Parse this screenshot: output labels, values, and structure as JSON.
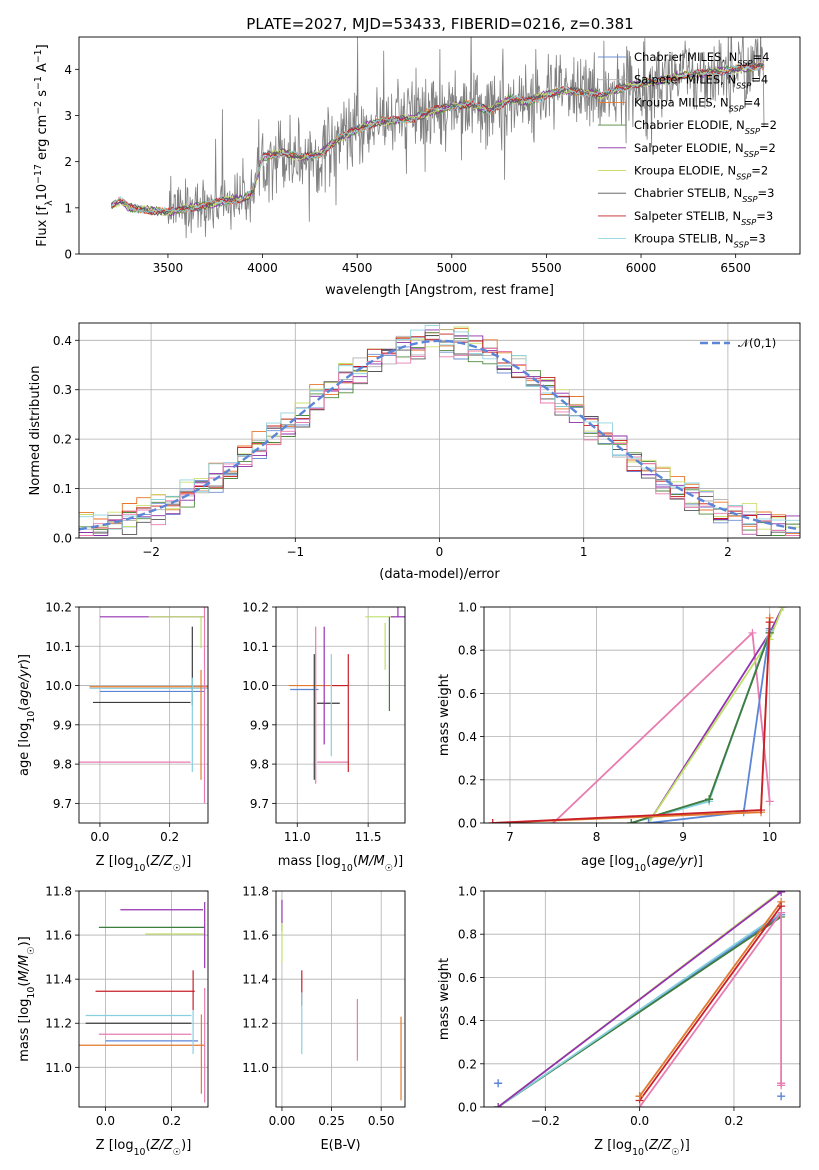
{
  "figure_title": "PLATE=2027, MJD=53433, FIBERID=0216, z=0.381",
  "series_colors": [
    "#6f8fd4",
    "#b0b0b0",
    "#e8762c",
    "#4f8a3c",
    "#8b2fa8",
    "#c9e070",
    "#555555",
    "#c41f1f",
    "#8fd3df"
  ],
  "model_colors": [
    "#5b86d8",
    "#7a7a7a",
    "#e27a2e",
    "#3d7d3d",
    "#9432b2",
    "#bfe06a",
    "#3a3a3a",
    "#c8202a",
    "#88d0e0",
    "#e87cb0"
  ],
  "normal_color": "#5b86d8",
  "chart_data": [
    {
      "id": "spectrum",
      "type": "line",
      "title": "PLATE=2027, MJD=53433, FIBERID=0216, z=0.381",
      "xlabel": "wavelength [Angstrom, rest frame]",
      "ylabel": "Flux [f_λ 10^-17 erg cm^-2 s^-1 A^-1]",
      "xlim": [
        3030,
        6840
      ],
      "ylim": [
        0,
        4.7
      ],
      "xticks": [
        3500,
        4000,
        4500,
        5000,
        5500,
        6000,
        6500
      ],
      "yticks": [
        0,
        1,
        2,
        3,
        4
      ],
      "grid": false,
      "legend_position": "top-right",
      "legend": [
        {
          "label": "Chabrier MILES, N",
          "sub": "SSP",
          "tail": "=4"
        },
        {
          "label": "Salpeter MILES, N",
          "sub": "SSP",
          "tail": "=4"
        },
        {
          "label": "Kroupa MILES, N",
          "sub": "SSP",
          "tail": "=4"
        },
        {
          "label": "Chabrier ELODIE, N",
          "sub": "SSP",
          "tail": "=2"
        },
        {
          "label": "Salpeter ELODIE, N",
          "sub": "SSP",
          "tail": "=2"
        },
        {
          "label": "Kroupa ELODIE, N",
          "sub": "SSP",
          "tail": "=2"
        },
        {
          "label": "Chabrier STELIB, N",
          "sub": "SSP",
          "tail": "=3"
        },
        {
          "label": "Salpeter STELIB, N",
          "sub": "SSP",
          "tail": "=3"
        },
        {
          "label": "Kroupa STELIB, N",
          "sub": "SSP",
          "tail": "=3"
        }
      ],
      "continuum": {
        "x": [
          3200,
          3250,
          3300,
          3400,
          3500,
          3600,
          3700,
          3800,
          3900,
          3950,
          4000,
          4100,
          4200,
          4300,
          4400,
          4500,
          4600,
          4700,
          4800,
          4900,
          5000,
          5100,
          5200,
          5300,
          5400,
          5500,
          5600,
          5700,
          5800,
          5900,
          6000,
          6100,
          6200,
          6300,
          6400,
          6500,
          6600,
          6650
        ],
        "y": [
          1.05,
          1.15,
          1.0,
          0.95,
          0.9,
          1.0,
          1.05,
          1.15,
          1.2,
          1.35,
          2.1,
          2.2,
          2.1,
          2.15,
          2.5,
          2.7,
          2.85,
          2.9,
          2.95,
          3.1,
          3.2,
          3.25,
          3.1,
          3.35,
          3.3,
          3.45,
          3.55,
          3.5,
          3.45,
          3.6,
          3.7,
          3.75,
          3.85,
          3.9,
          3.95,
          4.0,
          4.05,
          4.1
        ]
      },
      "spectrum_noise": 0.7
    },
    {
      "id": "residuals",
      "type": "histogram",
      "xlabel": "(data-model)/error",
      "ylabel": "Normed distribution",
      "xlim": [
        -2.5,
        2.5
      ],
      "ylim": [
        0,
        0.435
      ],
      "xticks": [
        -2,
        -1,
        0,
        1,
        2
      ],
      "yticks": [
        0.0,
        0.1,
        0.2,
        0.3,
        0.4
      ],
      "grid": true,
      "legend_position": "top-right",
      "legend": [
        {
          "label": "𝒩(0,1)"
        }
      ],
      "bin_width": 0.1,
      "jitter": 0.025
    },
    {
      "id": "age-vs-Z",
      "type": "errorbar",
      "xlabel": "Z [log10(Z/Z☉)]",
      "ylabel": "age  [log10(age/yr)]",
      "xlim": [
        -0.06,
        0.31
      ],
      "ylim": [
        9.65,
        10.2
      ],
      "xticks": [
        0.0,
        0.2
      ],
      "yticks": [
        9.7,
        9.8,
        9.9,
        10.0,
        10.1,
        10.2
      ],
      "grid": true,
      "points": [
        {
          "x": 0.15,
          "y": 10.175,
          "xerr": [
            0.15,
            0.15
          ],
          "yerr": [
            0,
            0
          ],
          "c": 4
        },
        {
          "x": 0.22,
          "y": 10.175,
          "xerr": [
            0.08,
            0.08
          ],
          "yerr": [
            0,
            0.0
          ],
          "c": 5
        },
        {
          "x": 0.29,
          "y": 10.175,
          "xerr": [
            0.0,
            0.0
          ],
          "yerr": [
            0.08,
            0.0
          ],
          "c": 5
        },
        {
          "x": 0.14,
          "y": 9.997,
          "xerr": [
            0.17,
            0.17
          ],
          "yerr": [
            0,
            0
          ],
          "c": 2
        },
        {
          "x": 0.14,
          "y": 9.993,
          "xerr": [
            0.17,
            0.17
          ],
          "yerr": [
            0,
            0
          ],
          "c": 8
        },
        {
          "x": 0.15,
          "y": 9.985,
          "xerr": [
            0.15,
            0.15
          ],
          "yerr": [
            0,
            0
          ],
          "c": 0
        },
        {
          "x": 0.12,
          "y": 9.957,
          "xerr": [
            0.14,
            0.14
          ],
          "yerr": [
            0,
            0
          ],
          "c": 6
        },
        {
          "x": 0.1,
          "y": 9.805,
          "xerr": [
            0.16,
            0.16
          ],
          "yerr": [
            0,
            0
          ],
          "c": 9
        },
        {
          "x": 0.265,
          "y": 10.05,
          "xerr": [
            0,
            0
          ],
          "yerr": [
            0.1,
            0.1
          ],
          "c": 6
        },
        {
          "x": 0.265,
          "y": 9.9,
          "xerr": [
            0,
            0
          ],
          "yerr": [
            0.12,
            0.12
          ],
          "c": 8
        },
        {
          "x": 0.29,
          "y": 9.9,
          "xerr": [
            0,
            0
          ],
          "yerr": [
            0.14,
            0.14
          ],
          "c": 2
        },
        {
          "x": 0.3,
          "y": 9.95,
          "xerr": [
            0,
            0
          ],
          "yerr": [
            0.25,
            0.25
          ],
          "c": 9
        }
      ]
    },
    {
      "id": "age-vs-mass",
      "type": "errorbar",
      "xlabel": "mass [log10(M/M☉)]",
      "ylabel": "",
      "xlim": [
        10.85,
        11.76
      ],
      "ylim": [
        9.65,
        10.2
      ],
      "xticks": [
        11.0,
        11.5
      ],
      "yticks": [
        9.7,
        9.8,
        9.9,
        10.0,
        10.1,
        10.2
      ],
      "grid": true,
      "points": [
        {
          "x": 11.58,
          "y": 10.175,
          "xerr": [
            0.1,
            0.1
          ],
          "yerr": [
            0.0,
            0.0
          ],
          "c": 5
        },
        {
          "x": 11.71,
          "y": 10.175,
          "xerr": [
            0.05,
            0.05
          ],
          "yerr": [
            0.0,
            0.09
          ],
          "c": 4
        },
        {
          "x": 11.65,
          "y": 10.175,
          "xerr": [
            0.0,
            0.0
          ],
          "yerr": [
            0.24,
            0.0
          ],
          "c": 3
        },
        {
          "x": 11.62,
          "y": 10.1,
          "xerr": [
            0.0,
            0.0
          ],
          "yerr": [
            0.06,
            0.06
          ],
          "c": 5
        },
        {
          "x": 11.14,
          "y": 10.0,
          "xerr": [
            0.2,
            0.2
          ],
          "yerr": [
            0,
            0
          ],
          "c": 2
        },
        {
          "x": 11.05,
          "y": 9.99,
          "xerr": [
            0.1,
            0.1
          ],
          "yerr": [
            0,
            0
          ],
          "c": 0
        },
        {
          "x": 11.22,
          "y": 9.955,
          "xerr": [
            0.08,
            0.08
          ],
          "yerr": [
            0,
            0
          ],
          "c": 6
        },
        {
          "x": 11.25,
          "y": 9.805,
          "xerr": [
            0.11,
            0.11
          ],
          "yerr": [
            0,
            0
          ],
          "c": 9
        },
        {
          "x": 11.3,
          "y": 10.0,
          "xerr": [
            0.06,
            0.06
          ],
          "yerr": [
            0,
            0
          ],
          "c": 7
        },
        {
          "x": 11.36,
          "y": 9.93,
          "xerr": [
            0,
            0
          ],
          "yerr": [
            0.15,
            0.15
          ],
          "c": 7
        },
        {
          "x": 11.19,
          "y": 10.0,
          "xerr": [
            0,
            0
          ],
          "yerr": [
            0.15,
            0.15
          ],
          "c": 4
        },
        {
          "x": 11.24,
          "y": 9.95,
          "xerr": [
            0,
            0
          ],
          "yerr": [
            0.13,
            0.13
          ],
          "c": 8
        },
        {
          "x": 11.13,
          "y": 9.95,
          "xerr": [
            0,
            0
          ],
          "yerr": [
            0.2,
            0.2
          ],
          "c": 9
        },
        {
          "x": 11.12,
          "y": 9.92,
          "xerr": [
            0,
            0
          ],
          "yerr": [
            0.16,
            0.16
          ],
          "c": 6
        }
      ]
    },
    {
      "id": "weight-vs-age",
      "type": "line",
      "xlabel": "age  [log10(age/yr)]",
      "ylabel": "mass weight",
      "xlim": [
        6.7,
        10.35
      ],
      "ylim": [
        0,
        1.0
      ],
      "xticks": [
        7,
        8,
        9,
        10
      ],
      "yticks": [
        0.0,
        0.2,
        0.4,
        0.6,
        0.8,
        1.0
      ],
      "grid": true,
      "series": [
        {
          "c": 9,
          "x": [
            7.5,
            9.8,
            10.0
          ],
          "y": [
            0.0,
            0.88,
            0.1
          ]
        },
        {
          "c": 4,
          "x": [
            8.6,
            10.0,
            10.15
          ],
          "y": [
            0.0,
            0.88,
            1.0
          ]
        },
        {
          "c": 5,
          "x": [
            8.6,
            10.0,
            10.15
          ],
          "y": [
            0.0,
            0.85,
            1.0
          ]
        },
        {
          "c": 6,
          "x": [
            8.4,
            9.3,
            10.0
          ],
          "y": [
            0.0,
            0.11,
            0.88
          ]
        },
        {
          "c": 8,
          "x": [
            8.4,
            9.3,
            10.0
          ],
          "y": [
            0.0,
            0.1,
            0.89
          ]
        },
        {
          "c": 3,
          "x": [
            8.4,
            9.3,
            10.0
          ],
          "y": [
            0.0,
            0.11,
            0.88
          ]
        },
        {
          "c": 0,
          "x": [
            8.6,
            9.7,
            10.0
          ],
          "y": [
            0.0,
            0.05,
            0.9
          ]
        },
        {
          "c": 2,
          "x": [
            6.8,
            9.9,
            10.0
          ],
          "y": [
            0.0,
            0.05,
            0.95
          ]
        },
        {
          "c": 7,
          "x": [
            6.8,
            9.9,
            10.0
          ],
          "y": [
            0.0,
            0.06,
            0.93
          ]
        }
      ]
    },
    {
      "id": "mass-vs-Z",
      "type": "errorbar",
      "xlabel": "Z [log10(Z/Z☉)]",
      "ylabel": "mass [log10(M/M☉)]",
      "xlim": [
        -0.08,
        0.31
      ],
      "ylim": [
        10.82,
        11.8
      ],
      "xticks": [
        0.0,
        0.2
      ],
      "yticks": [
        11.0,
        11.2,
        11.4,
        11.6,
        11.8
      ],
      "grid": true,
      "points": [
        {
          "x": 0.17,
          "y": 11.715,
          "xerr": [
            0.125,
            0.125
          ],
          "yerr": [
            0,
            0
          ],
          "c": 4
        },
        {
          "x": 0.14,
          "y": 11.635,
          "xerr": [
            0.16,
            0.16
          ],
          "yerr": [
            0,
            0
          ],
          "c": 3
        },
        {
          "x": 0.21,
          "y": 11.605,
          "xerr": [
            0.09,
            0.09
          ],
          "yerr": [
            0,
            0
          ],
          "c": 5
        },
        {
          "x": 0.12,
          "y": 11.345,
          "xerr": [
            0.15,
            0.15
          ],
          "yerr": [
            0,
            0
          ],
          "c": 7
        },
        {
          "x": 0.1,
          "y": 11.235,
          "xerr": [
            0.16,
            0.16
          ],
          "yerr": [
            0,
            0
          ],
          "c": 8
        },
        {
          "x": 0.1,
          "y": 11.2,
          "xerr": [
            0.16,
            0.16
          ],
          "yerr": [
            0,
            0
          ],
          "c": 6
        },
        {
          "x": 0.12,
          "y": 11.15,
          "xerr": [
            0.14,
            0.14
          ],
          "yerr": [
            0,
            0
          ],
          "c": 9
        },
        {
          "x": 0.14,
          "y": 11.12,
          "xerr": [
            0.14,
            0.14
          ],
          "yerr": [
            0,
            0
          ],
          "c": 0
        },
        {
          "x": 0.11,
          "y": 11.1,
          "xerr": [
            0.19,
            0.19
          ],
          "yerr": [
            0,
            0
          ],
          "c": 2
        },
        {
          "x": 0.3,
          "y": 11.6,
          "xerr": [
            0,
            0
          ],
          "yerr": [
            0.15,
            0.15
          ],
          "c": 4
        },
        {
          "x": 0.265,
          "y": 11.35,
          "xerr": [
            0,
            0
          ],
          "yerr": [
            0.09,
            0.09
          ],
          "c": 7
        },
        {
          "x": 0.265,
          "y": 11.16,
          "xerr": [
            0,
            0
          ],
          "yerr": [
            0.1,
            0.1
          ],
          "c": 8
        },
        {
          "x": 0.29,
          "y": 11.06,
          "xerr": [
            0,
            0
          ],
          "yerr": [
            0.18,
            0.18
          ],
          "c": 2
        },
        {
          "x": 0.3,
          "y": 11.1,
          "xerr": [
            0,
            0
          ],
          "yerr": [
            0.26,
            0.26
          ],
          "c": 9
        }
      ]
    },
    {
      "id": "mass-vs-EBV",
      "type": "errorbar",
      "xlabel": "E(B-V)",
      "ylabel": "",
      "xlim": [
        -0.03,
        0.62
      ],
      "ylim": [
        10.82,
        11.8
      ],
      "xticks": [
        0.0,
        0.25,
        0.5
      ],
      "yticks": [
        11.0,
        11.2,
        11.4,
        11.6,
        11.8
      ],
      "grid": true,
      "points": [
        {
          "x": 0.0,
          "y": 11.69,
          "xerr": [
            0,
            0
          ],
          "yerr": [
            0.07,
            0.07
          ],
          "c": 4
        },
        {
          "x": 0.0,
          "y": 11.565,
          "xerr": [
            0,
            0
          ],
          "yerr": [
            0.09,
            0.09
          ],
          "c": 5
        },
        {
          "x": 0.1,
          "y": 11.36,
          "xerr": [
            0,
            0
          ],
          "yerr": [
            0.08,
            0.08
          ],
          "c": 7
        },
        {
          "x": 0.1,
          "y": 11.2,
          "xerr": [
            0,
            0
          ],
          "yerr": [
            0.14,
            0.14
          ],
          "c": 8
        },
        {
          "x": 0.38,
          "y": 11.17,
          "xerr": [
            0,
            0
          ],
          "yerr": [
            0.14,
            0.14
          ],
          "c": 9
        },
        {
          "x": 0.6,
          "y": 11.04,
          "xerr": [
            0,
            0
          ],
          "yerr": [
            0.19,
            0.19
          ],
          "c": 2
        }
      ]
    },
    {
      "id": "weight-vs-Z",
      "type": "line",
      "xlabel": "Z [log10(Z/Z☉)]",
      "ylabel": "mass weight",
      "xlim": [
        -0.33,
        0.34
      ],
      "ylim": [
        0,
        1.0
      ],
      "xticks": [
        -0.2,
        0.0,
        0.2
      ],
      "yticks": [
        0.0,
        0.2,
        0.4,
        0.6,
        0.8,
        1.0
      ],
      "grid": true,
      "series": [
        {
          "c": 0,
          "x": [
            -0.3,
            0.3
          ],
          "y": [
            0.0,
            0.89
          ]
        },
        {
          "c": 3,
          "x": [
            -0.3,
            0.3
          ],
          "y": [
            0.0,
            0.88
          ]
        },
        {
          "c": 8,
          "x": [
            -0.3,
            0.3
          ],
          "y": [
            0.0,
            0.9
          ]
        },
        {
          "c": 5,
          "x": [
            -0.3,
            0.3
          ],
          "y": [
            0.0,
            1.0
          ]
        },
        {
          "c": 4,
          "x": [
            -0.3,
            0.3
          ],
          "y": [
            0.0,
            0.995
          ]
        },
        {
          "c": 2,
          "x": [
            0.0,
            0.3
          ],
          "y": [
            0.05,
            0.95
          ]
        },
        {
          "c": 7,
          "x": [
            0.0,
            0.3
          ],
          "y": [
            0.03,
            0.93
          ]
        },
        {
          "c": 9,
          "x": [
            0.0,
            0.3,
            0.3
          ],
          "y": [
            0.0,
            0.9,
            0.1
          ]
        }
      ],
      "markers": [
        {
          "c": 0,
          "x": -0.3,
          "y": 0.11
        },
        {
          "c": 0,
          "x": 0.3,
          "y": 0.05
        },
        {
          "c": 9,
          "x": 0.3,
          "y": 0.11
        },
        {
          "c": 2,
          "x": 0.0,
          "y": 0.05
        }
      ]
    }
  ]
}
